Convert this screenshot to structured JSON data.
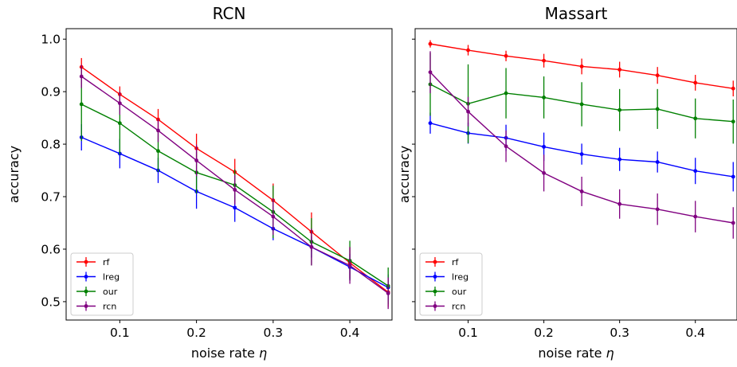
{
  "chart_data": [
    {
      "type": "line",
      "title": "RCN",
      "xlabel": "noise rate",
      "xlabel_symbol": "η",
      "ylabel": "accuracy",
      "x": [
        0.05,
        0.1,
        0.15,
        0.2,
        0.25,
        0.3,
        0.35,
        0.4,
        0.45
      ],
      "xlim": [
        0.03,
        0.455
      ],
      "ylim": [
        0.465,
        1.02
      ],
      "xticks": [
        "0.1",
        "0.2",
        "0.3",
        "0.4"
      ],
      "yticks": [
        "0.5",
        "0.6",
        "0.7",
        "0.8",
        "0.9",
        "1.0"
      ],
      "legend_position": "lower-left",
      "series": [
        {
          "name": "rf",
          "color": "#ff0000",
          "values": [
            0.947,
            0.895,
            0.847,
            0.792,
            0.747,
            0.693,
            0.633,
            0.574,
            0.518
          ],
          "errors": [
            0.017,
            0.015,
            0.02,
            0.028,
            0.025,
            0.032,
            0.037,
            0.03,
            0.028
          ]
        },
        {
          "name": "lreg",
          "color": "#0000ff",
          "values": [
            0.813,
            0.782,
            0.75,
            0.71,
            0.679,
            0.639,
            0.604,
            0.566,
            0.527
          ],
          "errors": [
            0.025,
            0.028,
            0.024,
            0.033,
            0.027,
            0.022,
            0.02,
            0.025,
            0.025
          ]
        },
        {
          "name": "our",
          "color": "#008000",
          "values": [
            0.876,
            0.84,
            0.787,
            0.746,
            0.722,
            0.671,
            0.614,
            0.578,
            0.53
          ],
          "errors": [
            0.07,
            0.06,
            0.04,
            0.04,
            0.03,
            0.05,
            0.045,
            0.038,
            0.035
          ]
        },
        {
          "name": "rcn",
          "color": "#800080",
          "values": [
            0.929,
            0.878,
            0.826,
            0.769,
            0.713,
            0.662,
            0.604,
            0.569,
            0.516
          ],
          "errors": [
            0.022,
            0.022,
            0.022,
            0.03,
            0.028,
            0.035,
            0.035,
            0.035,
            0.03
          ]
        }
      ]
    },
    {
      "type": "line",
      "title": "Massart",
      "xlabel": "noise rate",
      "xlabel_symbol": "η",
      "ylabel": "accuracy",
      "x": [
        0.05,
        0.1,
        0.15,
        0.2,
        0.25,
        0.3,
        0.35,
        0.4,
        0.45
      ],
      "xlim": [
        0.03,
        0.455
      ],
      "ylim": [
        0.465,
        1.02
      ],
      "xticks": [
        "0.1",
        "0.2",
        "0.3",
        "0.4"
      ],
      "legend_position": "lower-left",
      "series": [
        {
          "name": "rf",
          "color": "#ff0000",
          "values": [
            0.991,
            0.979,
            0.968,
            0.959,
            0.948,
            0.942,
            0.931,
            0.917,
            0.906
          ],
          "errors": [
            0.007,
            0.01,
            0.01,
            0.013,
            0.015,
            0.015,
            0.016,
            0.015,
            0.015
          ]
        },
        {
          "name": "lreg",
          "color": "#0000ff",
          "values": [
            0.84,
            0.821,
            0.812,
            0.795,
            0.781,
            0.771,
            0.766,
            0.749,
            0.738
          ],
          "errors": [
            0.02,
            0.02,
            0.025,
            0.027,
            0.02,
            0.022,
            0.02,
            0.025,
            0.028
          ]
        },
        {
          "name": "our",
          "color": "#008000",
          "values": [
            0.914,
            0.877,
            0.897,
            0.889,
            0.876,
            0.865,
            0.867,
            0.849,
            0.843
          ],
          "errors": [
            0.06,
            0.075,
            0.048,
            0.04,
            0.042,
            0.04,
            0.038,
            0.038,
            0.042
          ]
        },
        {
          "name": "rcn",
          "color": "#800080",
          "values": [
            0.937,
            0.862,
            0.796,
            0.745,
            0.71,
            0.686,
            0.676,
            0.662,
            0.65
          ],
          "errors": [
            0.04,
            0.028,
            0.03,
            0.035,
            0.028,
            0.028,
            0.03,
            0.03,
            0.03
          ]
        }
      ]
    }
  ]
}
